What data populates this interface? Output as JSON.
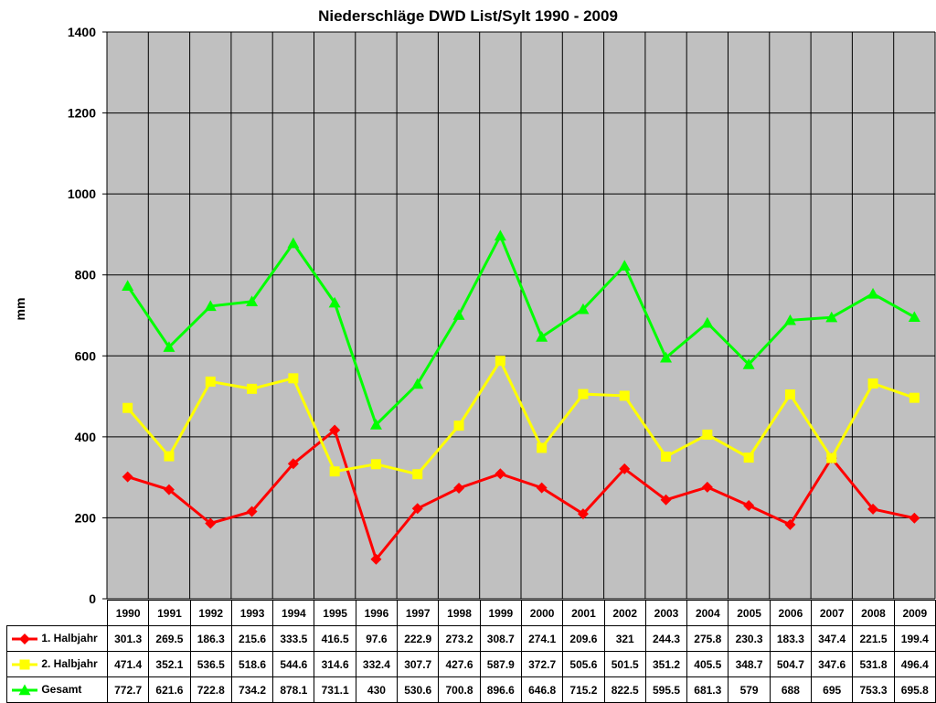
{
  "chart_data": {
    "type": "line",
    "title": "Niederschläge DWD List/Sylt 1990 - 2009",
    "xlabel": "",
    "ylabel": "mm",
    "ylim": [
      0,
      1400
    ],
    "yticks": [
      0,
      200,
      400,
      600,
      800,
      1000,
      1200,
      1400
    ],
    "grid": true,
    "legend": "data-table",
    "categories": [
      "1990",
      "1991",
      "1992",
      "1993",
      "1994",
      "1995",
      "1996",
      "1997",
      "1998",
      "1999",
      "2000",
      "2001",
      "2002",
      "2003",
      "2004",
      "2005",
      "2006",
      "2007",
      "2008",
      "2009"
    ],
    "series": [
      {
        "name": "1. Halbjahr",
        "color": "#ff0000",
        "marker": "diamond",
        "values": [
          301.3,
          269.5,
          186.3,
          215.6,
          333.5,
          416.5,
          97.6,
          222.9,
          273.2,
          308.7,
          274.1,
          209.6,
          321,
          244.3,
          275.8,
          230.3,
          183.3,
          347.4,
          221.5,
          199.4
        ]
      },
      {
        "name": "2. Halbjahr",
        "color": "#ffff00",
        "marker": "square",
        "values": [
          471.4,
          352.1,
          536.5,
          518.6,
          544.6,
          314.6,
          332.4,
          307.7,
          427.6,
          587.9,
          372.7,
          505.6,
          501.5,
          351.2,
          405.5,
          348.7,
          504.7,
          347.6,
          531.8,
          496.4
        ]
      },
      {
        "name": "Gesamt",
        "color": "#00ff00",
        "marker": "triangle",
        "values": [
          772.7,
          621.6,
          722.8,
          734.2,
          878.1,
          731.1,
          430,
          530.6,
          700.8,
          896.6,
          646.8,
          715.2,
          822.5,
          595.5,
          681.3,
          579,
          688,
          695,
          753.3,
          695.8
        ]
      }
    ]
  }
}
